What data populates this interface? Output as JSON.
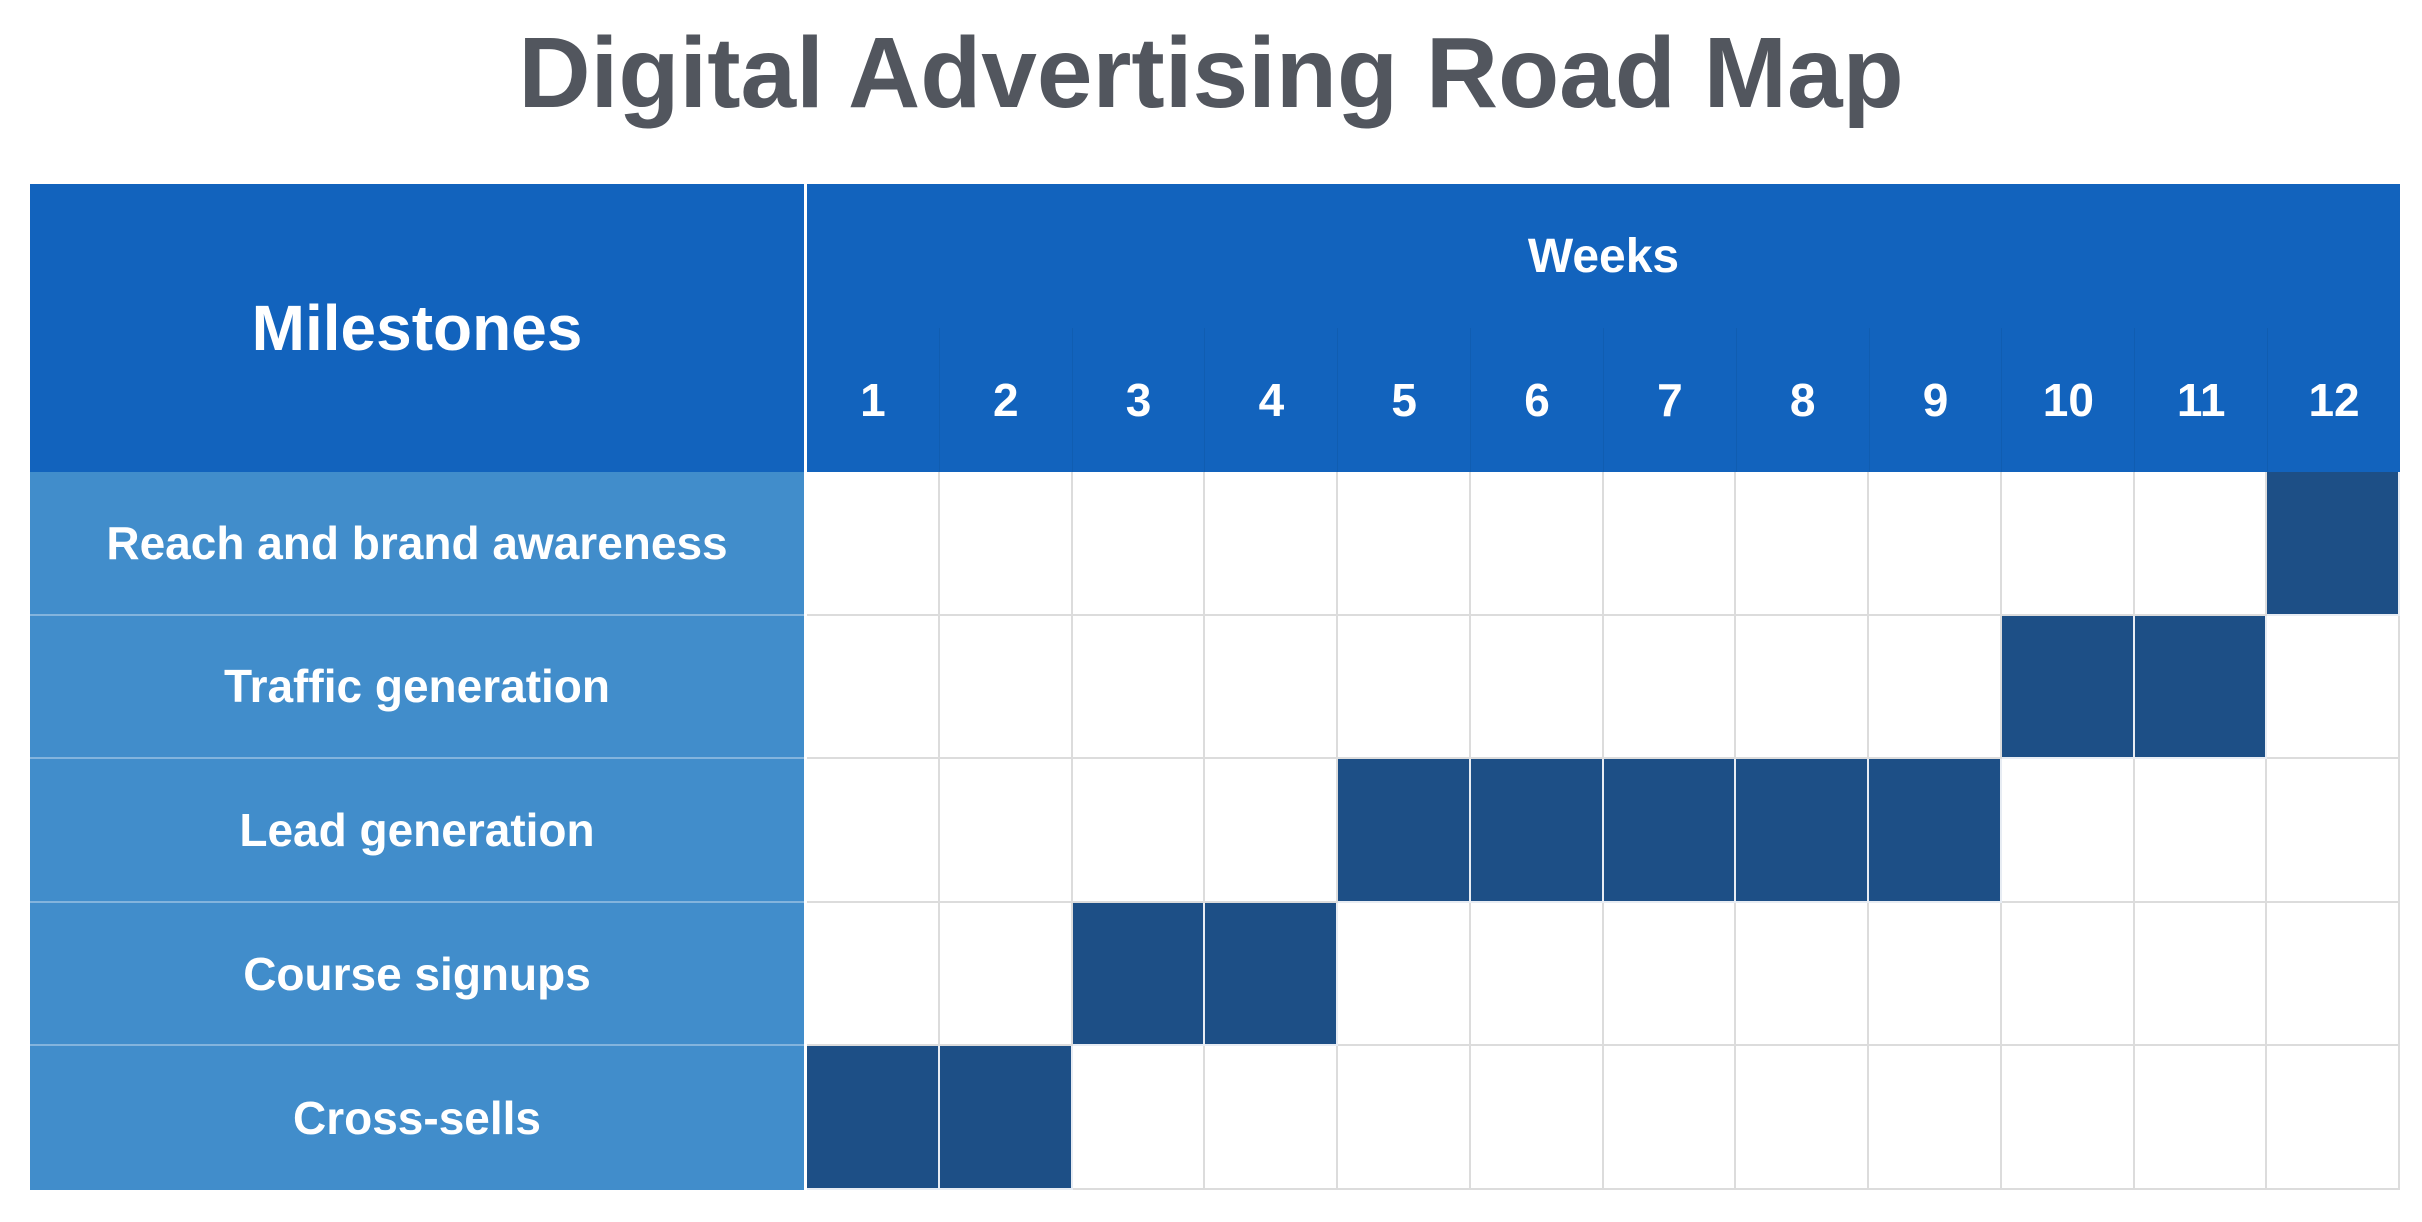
{
  "title": "Digital Advertising Road Map",
  "table": {
    "milestones_header": "Milestones",
    "weeks_header": "Weeks",
    "weeks": [
      "1",
      "2",
      "3",
      "4",
      "5",
      "6",
      "7",
      "8",
      "9",
      "10",
      "11",
      "12"
    ],
    "rows": [
      {
        "label": "Reach and brand awareness",
        "active_weeks": [
          12
        ]
      },
      {
        "label": "Traffic generation",
        "active_weeks": [
          10,
          11
        ]
      },
      {
        "label": "Lead generation",
        "active_weeks": [
          5,
          6,
          7,
          8,
          9
        ]
      },
      {
        "label": "Course signups",
        "active_weeks": [
          3,
          4
        ]
      },
      {
        "label": "Cross-sells",
        "active_weeks": [
          1,
          2
        ]
      }
    ]
  },
  "colors": {
    "title_text": "#52565e",
    "header_bg": "#1263bd",
    "milestone_cell_bg": "#418dcb",
    "active_cell_bg": "#1d4f86",
    "grid_line": "#dcdcdc"
  }
}
